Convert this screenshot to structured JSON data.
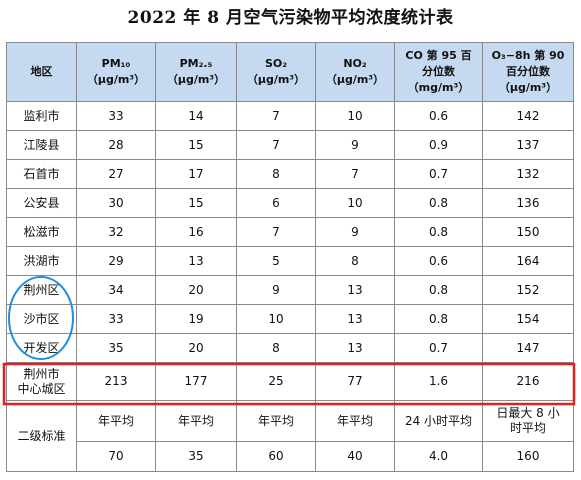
{
  "title": "2022 年 8 月空气污染物平均浓度统计表",
  "header": {
    "region": "地区",
    "pm10": {
      "name": "PM₁₀",
      "unit": "（μg/m³）"
    },
    "pm25": {
      "name": "PM₂.₅",
      "unit": "（μg/m³）"
    },
    "so2": {
      "name": "SO₂",
      "unit": "（μg/m³）"
    },
    "no2": {
      "name": "NO₂",
      "unit": "（μg/m³）"
    },
    "co": {
      "line1": "CO 第 95 百",
      "line2": "分位数",
      "unit": "（mg/m³）"
    },
    "o3": {
      "line1": "O₃−8h 第 90",
      "line2": "百分位数",
      "unit": "（μg/m³）"
    }
  },
  "rows": [
    {
      "region": "监利市",
      "pm10": "33",
      "pm25": "14",
      "so2": "7",
      "no2": "10",
      "co": "0.6",
      "o3": "142"
    },
    {
      "region": "江陵县",
      "pm10": "28",
      "pm25": "15",
      "so2": "7",
      "no2": "9",
      "co": "0.9",
      "o3": "137"
    },
    {
      "region": "石首市",
      "pm10": "27",
      "pm25": "17",
      "so2": "8",
      "no2": "7",
      "co": "0.7",
      "o3": "132"
    },
    {
      "region": "公安县",
      "pm10": "30",
      "pm25": "15",
      "so2": "6",
      "no2": "10",
      "co": "0.8",
      "o3": "136"
    },
    {
      "region": "松滋市",
      "pm10": "32",
      "pm25": "16",
      "so2": "7",
      "no2": "9",
      "co": "0.8",
      "o3": "150"
    },
    {
      "region": "洪湖市",
      "pm10": "29",
      "pm25": "13",
      "so2": "5",
      "no2": "8",
      "co": "0.6",
      "o3": "164"
    },
    {
      "region": "荆州区",
      "pm10": "34",
      "pm25": "20",
      "so2": "9",
      "no2": "13",
      "co": "0.8",
      "o3": "152"
    },
    {
      "region": "沙市区",
      "pm10": "33",
      "pm25": "19",
      "so2": "10",
      "no2": "13",
      "co": "0.8",
      "o3": "154"
    },
    {
      "region": "开发区",
      "pm10": "35",
      "pm25": "20",
      "so2": "8",
      "no2": "13",
      "co": "0.7",
      "o3": "147"
    }
  ],
  "center_row": {
    "region_line1": "荆州市",
    "region_line2": "中心城区",
    "pm10": "213",
    "pm25": "177",
    "so2": "25",
    "no2": "77",
    "co": "1.6",
    "o3": "216"
  },
  "standard": {
    "label": "二级标准",
    "periods": {
      "pm10": "年平均",
      "pm25": "年平均",
      "so2": "年平均",
      "no2": "年平均",
      "co": "24 小时平均",
      "o3_line1": "日最大 8 小",
      "o3_line2": "时平均"
    },
    "limits": {
      "pm10": "70",
      "pm25": "35",
      "so2": "60",
      "no2": "40",
      "co": "4.0",
      "o3": "160"
    }
  },
  "colors": {
    "header_bg": "#c5d9f0",
    "grid": "#8a8a8a",
    "circle_annotation": "#1e8fe0",
    "rect_annotation": "#e02020"
  }
}
